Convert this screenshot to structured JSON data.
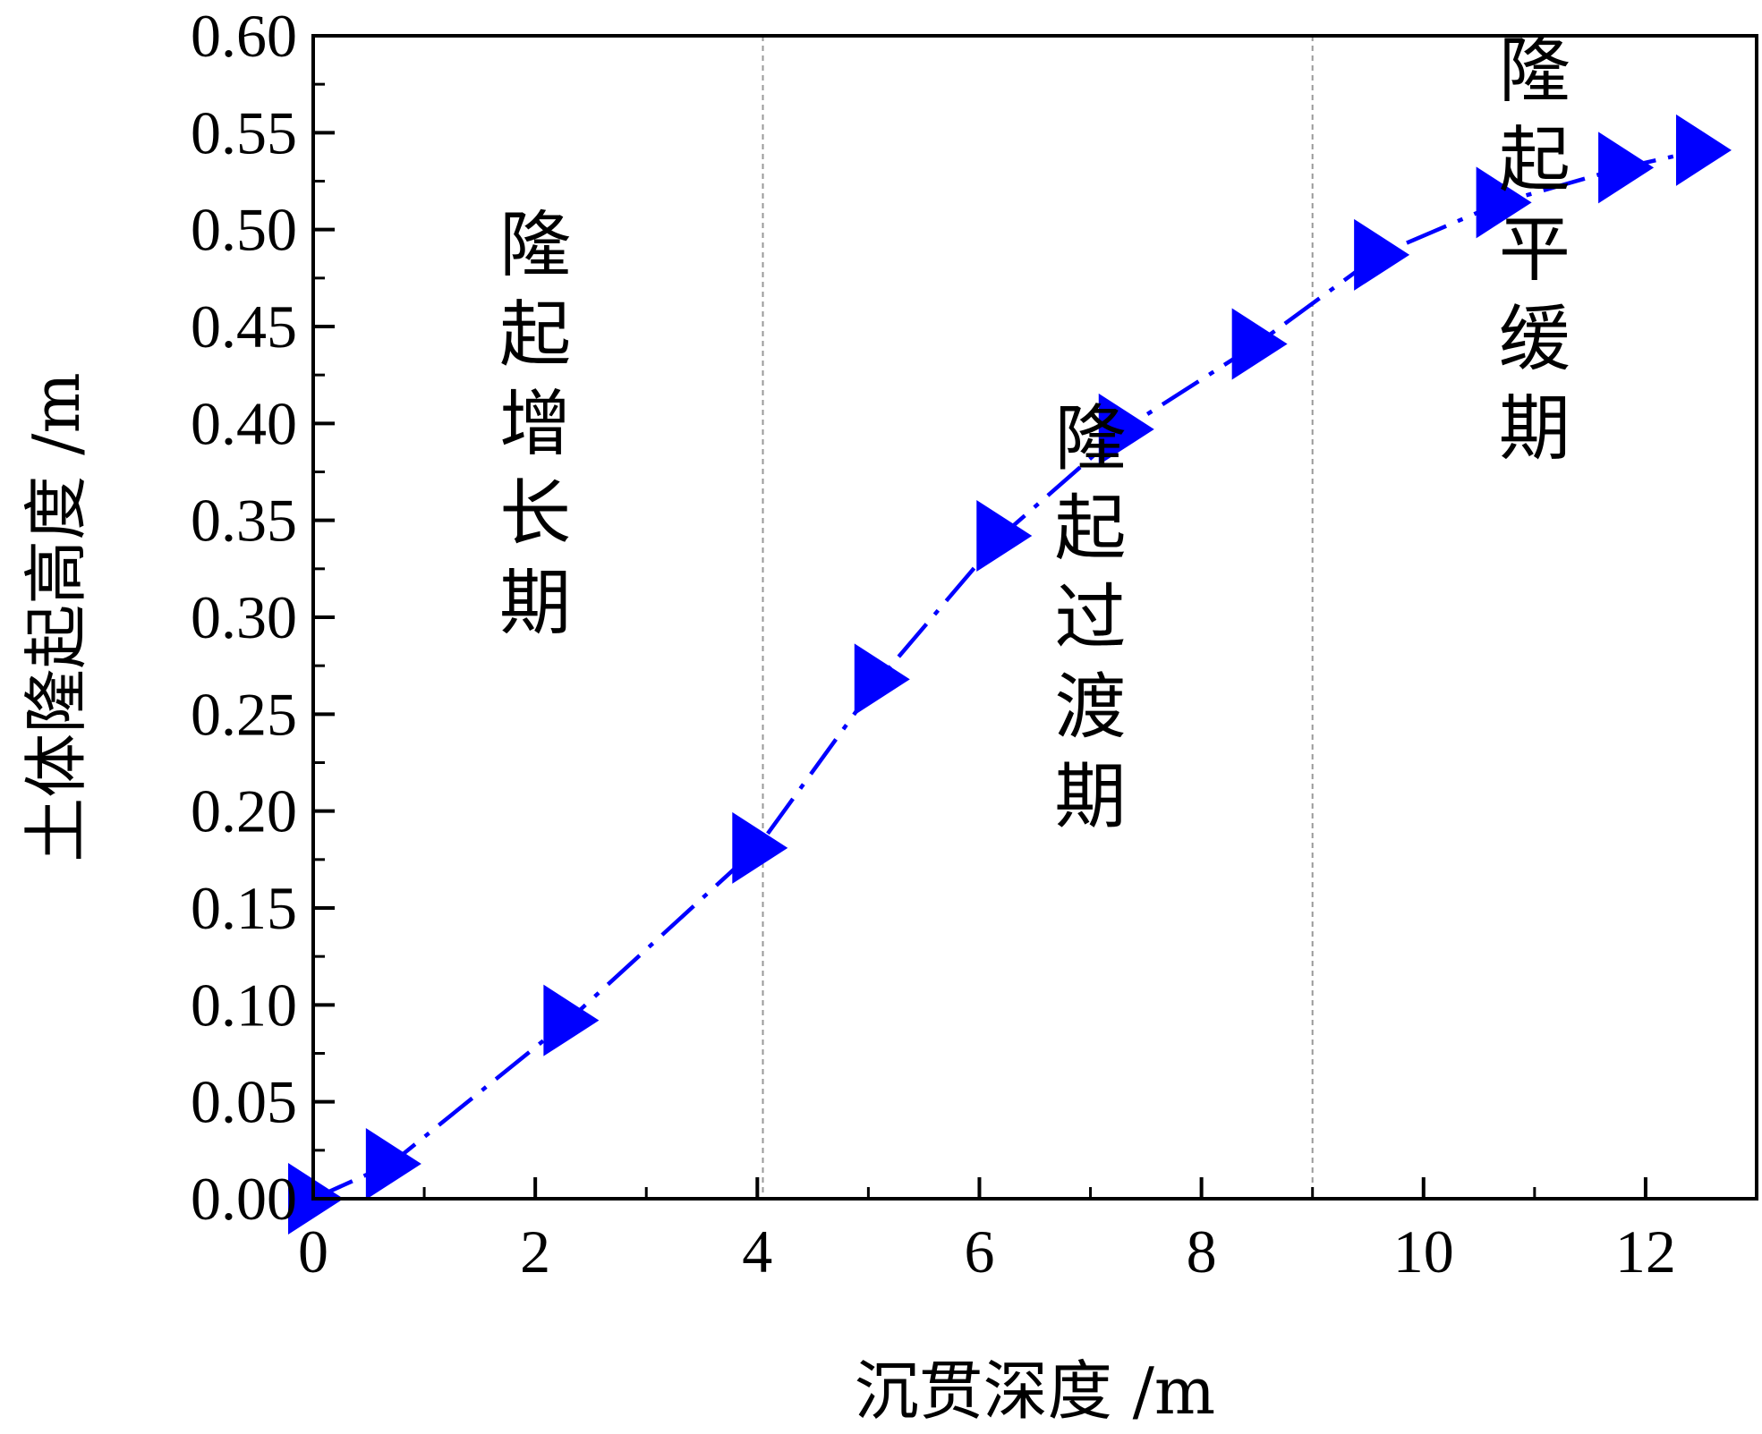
{
  "chart_data": {
    "type": "line",
    "xlabel": "沉贯深度 /m",
    "ylabel": "土体隆起高度 /m",
    "xlim": [
      0,
      13
    ],
    "ylim": [
      0,
      0.6
    ],
    "x_ticks": [
      0,
      2,
      4,
      6,
      8,
      10,
      12
    ],
    "x_tick_labels": [
      "0",
      "2",
      "4",
      "6",
      "8",
      "10",
      "12"
    ],
    "y_ticks": [
      0,
      0.05,
      0.1,
      0.15,
      0.2,
      0.25,
      0.3,
      0.35,
      0.4,
      0.45,
      0.5,
      0.55,
      0.6
    ],
    "y_tick_labels": [
      "0.00",
      "0.05",
      "0.10",
      "0.15",
      "0.20",
      "0.25",
      "0.30",
      "0.35",
      "0.40",
      "0.45",
      "0.50",
      "0.55",
      "0.60"
    ],
    "grid": false,
    "line_style": "dash-dot",
    "marker": "right-pointing triangle",
    "series": [
      {
        "color": "#0000ff",
        "x": [
          0,
          0.7,
          2.3,
          4.0,
          5.1,
          6.2,
          7.3,
          8.5,
          9.6,
          10.7,
          11.8,
          12.5
        ],
        "y": [
          0.0,
          0.018,
          0.092,
          0.181,
          0.268,
          0.342,
          0.397,
          0.441,
          0.487,
          0.514,
          0.532,
          0.541
        ]
      }
    ],
    "phase_dividers_x": [
      4.05,
      9.0
    ],
    "annotations": [
      {
        "text": "隆起增长期",
        "x": 2.0,
        "y": 0.4
      },
      {
        "text": "隆起过渡期",
        "x": 7.0,
        "y": 0.3
      },
      {
        "text": "隆起平缓期",
        "x": 11.0,
        "y": 0.49
      }
    ]
  }
}
